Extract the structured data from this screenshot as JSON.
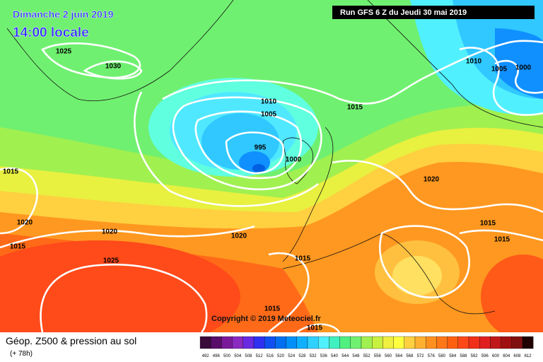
{
  "header": {
    "date": "Dimanche 2 juin 2019",
    "time": "14:00 locale",
    "run": "Run GFS 6 Z du Jeudi 30 mai 2019"
  },
  "copyright": "Copyright © 2019 Meteociel.fr",
  "isobar_labels": [
    "1025",
    "1030",
    "1010",
    "1005",
    "995",
    "1000",
    "1015",
    "1010",
    "1005",
    "1000",
    "1015",
    "1020",
    "1015",
    "1020",
    "1025",
    "1020",
    "1020",
    "1015",
    "1015",
    "1015",
    "1015",
    "1015"
  ],
  "legend": {
    "title": "Géop. Z500 & pression au sol",
    "lead": "(+ 78h)",
    "scale": {
      "labels": [
        492,
        496,
        500,
        504,
        508,
        512,
        516,
        520,
        524,
        528,
        532,
        536,
        540,
        544,
        548,
        552,
        556,
        560,
        564,
        568,
        572,
        576,
        580,
        584,
        588,
        592,
        596,
        600,
        604,
        608,
        612
      ],
      "colors": [
        "#3a0a3a",
        "#5a0e6a",
        "#7a1a9a",
        "#8a2ac0",
        "#6a2ae0",
        "#3030f0",
        "#1050f0",
        "#0070f0",
        "#0090f8",
        "#10b0ff",
        "#30d0ff",
        "#50f0ff",
        "#40f0c0",
        "#50f080",
        "#70f070",
        "#a0f050",
        "#c8f040",
        "#f0f040",
        "#ffff40",
        "#ffd040",
        "#ffb030",
        "#ff9020",
        "#ff7818",
        "#ff6010",
        "#ff4818",
        "#f03018",
        "#e02020",
        "#c01818",
        "#a01010",
        "#801010",
        "#200000"
      ]
    }
  }
}
